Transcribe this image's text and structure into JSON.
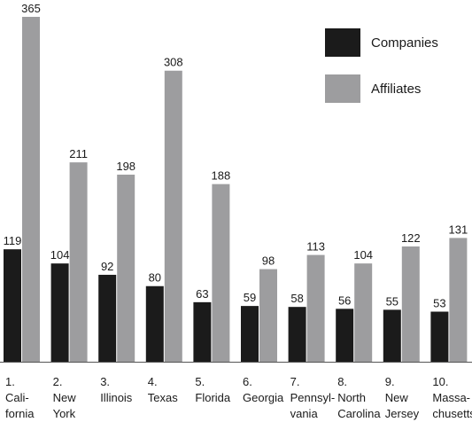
{
  "chart_data": {
    "type": "bar",
    "categories": [
      [
        "1.",
        "Cali-",
        "fornia"
      ],
      [
        "2.",
        "New",
        "York"
      ],
      [
        "3.",
        "Illinois"
      ],
      [
        "4.",
        "Texas"
      ],
      [
        "5.",
        "Florida"
      ],
      [
        "6.",
        "Georgia"
      ],
      [
        "7.",
        "Pennsyl-",
        "vania"
      ],
      [
        "8.",
        "North",
        "Carolina"
      ],
      [
        "9.",
        "New",
        "Jersey"
      ],
      [
        "10.",
        "Massa-",
        "chusetts"
      ]
    ],
    "series": [
      {
        "name": "Companies",
        "color": "#1b1b1b",
        "values": [
          119,
          104,
          92,
          80,
          63,
          59,
          58,
          56,
          55,
          53
        ]
      },
      {
        "name": "Affiliates",
        "color": "#9d9d9f",
        "values": [
          365,
          211,
          198,
          308,
          188,
          98,
          113,
          104,
          122,
          131
        ]
      }
    ],
    "ylim": [
      0,
      365
    ],
    "grid": false,
    "legend_position": "top-right",
    "axis_color": "#555555",
    "title": "",
    "xlabel": "",
    "ylabel": ""
  }
}
